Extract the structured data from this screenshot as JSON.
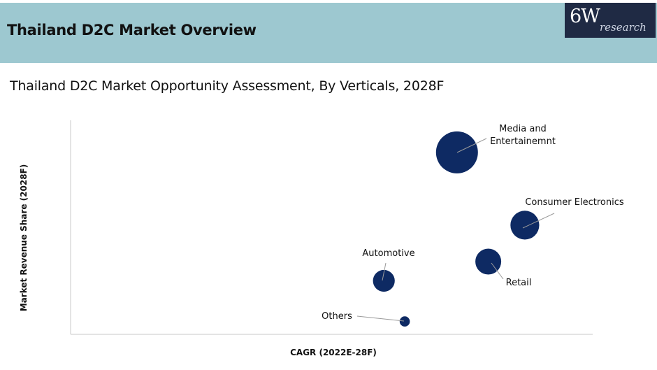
{
  "header": {
    "title": "Thailand D2C Market Overview",
    "logo_main": "6W",
    "logo_sub": "research"
  },
  "colors": {
    "header_bg": "#9dc8d0",
    "bubble": "#0e2a63",
    "logo_bg": "#1f2a44"
  },
  "chart_data": {
    "type": "scatter",
    "title": "Thailand D2C Market Opportunity Assessment, By Verticals, 2028F",
    "xlabel": "CAGR (2022E-28F)",
    "ylabel": "Market Revenue Share (2028F)",
    "grid": false,
    "axis_ticks": false,
    "xlim": [
      0,
      100
    ],
    "ylim": [
      0,
      100
    ],
    "points": [
      {
        "name": "Media and Entertainemnt",
        "label_lines": [
          "Media and",
          "Entertainemnt"
        ],
        "x": 74,
        "y": 85,
        "size": 100
      },
      {
        "name": "Consumer Electronics",
        "label_lines": [
          "Consumer Electronics"
        ],
        "x": 87,
        "y": 51,
        "size": 47
      },
      {
        "name": "Retail",
        "label_lines": [
          "Retail"
        ],
        "x": 80,
        "y": 34,
        "size": 38
      },
      {
        "name": "Automotive",
        "label_lines": [
          "Automotive"
        ],
        "x": 60,
        "y": 25,
        "size": 27
      },
      {
        "name": "Others",
        "label_lines": [
          "Others"
        ],
        "x": 64,
        "y": 6,
        "size": 6
      }
    ]
  }
}
